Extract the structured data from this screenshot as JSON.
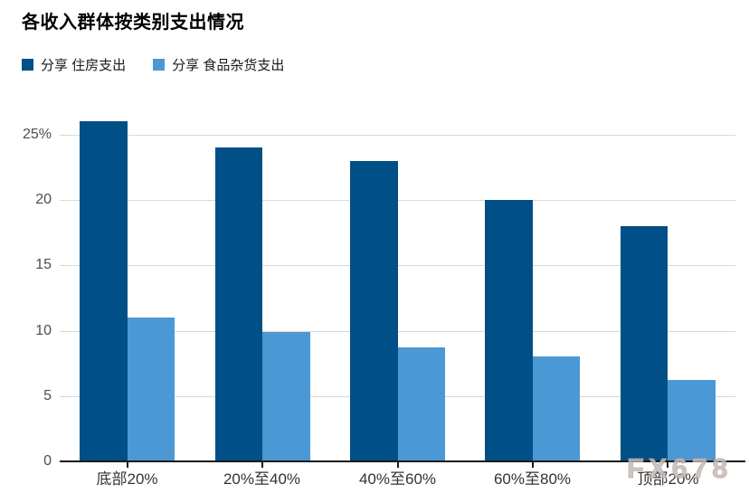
{
  "title": "各收入群体按类别支出情况",
  "legend": {
    "items": [
      {
        "label": "分享 住房支出",
        "color": "#004F86"
      },
      {
        "label": "分享 食品杂货支出",
        "color": "#4B98D5"
      }
    ]
  },
  "chart_data": {
    "type": "bar",
    "title": "各收入群体按类别支出情况",
    "categories": [
      "底部20%",
      "20%至40%",
      "40%至60%",
      "60%至80%",
      "顶部20%"
    ],
    "series": [
      {
        "name": "分享 住房支出",
        "color": "#004F86",
        "values": [
          26,
          24,
          23,
          20,
          18
        ]
      },
      {
        "name": "分享 食品杂货支出",
        "color": "#4B98D5",
        "values": [
          11,
          9.9,
          8.7,
          8,
          6.2
        ]
      }
    ],
    "xlabel": "",
    "ylabel": "",
    "ylim": [
      0,
      27.5
    ],
    "yticks": [
      0,
      5,
      10,
      15,
      20,
      25
    ],
    "ytick_labels": [
      "0",
      "5",
      "10",
      "15",
      "20",
      "25%"
    ],
    "grid": "horizontal",
    "legend_position": "top-left",
    "colors": {
      "gridline": "#d9d9d9",
      "axis": "#1a1a1a",
      "tick_text": "#4d4d4d",
      "category_text": "#333333"
    }
  },
  "watermark": "FX678"
}
